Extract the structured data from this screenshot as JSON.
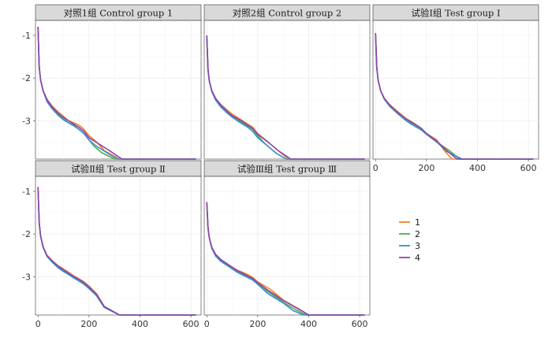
{
  "chart_data": {
    "type": "line",
    "layout": "facet-grid",
    "xlim": [
      -10,
      640
    ],
    "ylim": [
      -3.9,
      -0.65
    ],
    "x_ticks": [
      0,
      200,
      400,
      600
    ],
    "y_ticks": [
      -1,
      -2,
      -3
    ],
    "colors": [
      "#f58220",
      "#4caf50",
      "#3a8fd0",
      "#8e44ad"
    ],
    "legend": {
      "position": "right",
      "labels": [
        "1",
        "2",
        "3",
        "4"
      ]
    },
    "panels": [
      {
        "strip_title": "对照1组 Control group 1",
        "series": [
          {
            "name": "1",
            "x": [
              0,
              2,
              5,
              10,
              20,
              35,
              55,
              80,
              100,
              120,
              140,
              160,
              180,
              200,
              230,
              260,
              320,
              360,
              450,
              620
            ],
            "y": [
              -0.8,
              -1.25,
              -1.75,
              -2.05,
              -2.3,
              -2.5,
              -2.65,
              -2.8,
              -2.9,
              -3.0,
              -3.05,
              -3.1,
              -3.2,
              -3.35,
              -3.5,
              -3.7,
              -3.9,
              -3.9,
              -3.9,
              -3.9
            ]
          },
          {
            "name": "2",
            "x": [
              0,
              2,
              5,
              10,
              20,
              35,
              55,
              80,
              100,
              120,
              140,
              160,
              180,
              200,
              220,
              250,
              300,
              360,
              450,
              620
            ],
            "y": [
              -0.8,
              -1.25,
              -1.75,
              -2.05,
              -2.3,
              -2.5,
              -2.7,
              -2.85,
              -2.95,
              -3.05,
              -3.1,
              -3.2,
              -3.3,
              -3.45,
              -3.6,
              -3.75,
              -3.9,
              -3.9,
              -3.9,
              -3.9
            ]
          },
          {
            "name": "3",
            "x": [
              0,
              2,
              5,
              10,
              20,
              35,
              55,
              80,
              100,
              120,
              140,
              160,
              180,
              200,
              230,
              270,
              310,
              360,
              450,
              620
            ],
            "y": [
              -0.8,
              -1.25,
              -1.75,
              -2.05,
              -2.3,
              -2.55,
              -2.72,
              -2.88,
              -2.98,
              -3.05,
              -3.12,
              -3.2,
              -3.3,
              -3.45,
              -3.6,
              -3.75,
              -3.9,
              -3.9,
              -3.9,
              -3.9
            ]
          },
          {
            "name": "4",
            "x": [
              0,
              2,
              5,
              10,
              20,
              35,
              55,
              80,
              100,
              120,
              140,
              160,
              180,
              200,
              240,
              280,
              330,
              380,
              460,
              620
            ],
            "y": [
              -0.8,
              -1.25,
              -1.75,
              -2.05,
              -2.3,
              -2.5,
              -2.68,
              -2.83,
              -2.92,
              -3.0,
              -3.08,
              -3.15,
              -3.25,
              -3.4,
              -3.55,
              -3.7,
              -3.9,
              -3.9,
              -3.9,
              -3.9
            ]
          }
        ]
      },
      {
        "strip_title": "对照2组 Control group 2",
        "series": [
          {
            "name": "1",
            "x": [
              0,
              2,
              5,
              10,
              20,
              35,
              55,
              80,
              100,
              120,
              140,
              160,
              180,
              200,
              240,
              280,
              320,
              370,
              450,
              620
            ],
            "y": [
              -1.0,
              -1.35,
              -1.8,
              -2.08,
              -2.3,
              -2.48,
              -2.62,
              -2.75,
              -2.85,
              -2.92,
              -3.0,
              -3.08,
              -3.15,
              -3.3,
              -3.5,
              -3.7,
              -3.9,
              -3.9,
              -3.9,
              -3.9
            ]
          },
          {
            "name": "2",
            "x": [
              0,
              2,
              5,
              10,
              20,
              35,
              55,
              80,
              100,
              120,
              140,
              160,
              180,
              200,
              230,
              270,
              310,
              360,
              450,
              620
            ],
            "y": [
              -1.0,
              -1.35,
              -1.8,
              -2.08,
              -2.32,
              -2.5,
              -2.65,
              -2.8,
              -2.9,
              -2.98,
              -3.05,
              -3.12,
              -3.2,
              -3.35,
              -3.55,
              -3.75,
              -3.9,
              -3.9,
              -3.9,
              -3.9
            ]
          },
          {
            "name": "3",
            "x": [
              0,
              2,
              5,
              10,
              20,
              35,
              55,
              80,
              100,
              120,
              140,
              160,
              180,
              200,
              230,
              270,
              310,
              360,
              450,
              620
            ],
            "y": [
              -1.0,
              -1.35,
              -1.8,
              -2.08,
              -2.32,
              -2.52,
              -2.68,
              -2.82,
              -2.92,
              -3.0,
              -3.08,
              -3.15,
              -3.25,
              -3.4,
              -3.55,
              -3.75,
              -3.9,
              -3.9,
              -3.9,
              -3.9
            ]
          },
          {
            "name": "4",
            "x": [
              0,
              2,
              5,
              10,
              20,
              35,
              55,
              80,
              100,
              120,
              140,
              160,
              180,
              200,
              240,
              280,
              330,
              380,
              460,
              620
            ],
            "y": [
              -1.0,
              -1.35,
              -1.8,
              -2.08,
              -2.3,
              -2.48,
              -2.63,
              -2.78,
              -2.88,
              -2.95,
              -3.02,
              -3.1,
              -3.18,
              -3.32,
              -3.5,
              -3.7,
              -3.9,
              -3.9,
              -3.9,
              -3.9
            ]
          }
        ]
      },
      {
        "strip_title": "试验Ⅰ组  Test group  Ⅰ",
        "series": [
          {
            "name": "1",
            "x": [
              0,
              2,
              5,
              10,
              20,
              35,
              55,
              80,
              100,
              120,
              140,
              160,
              180,
              200,
              240,
              270,
              300,
              360,
              450,
              620
            ],
            "y": [
              -0.95,
              -1.3,
              -1.75,
              -2.05,
              -2.3,
              -2.48,
              -2.62,
              -2.75,
              -2.85,
              -2.95,
              -3.02,
              -3.1,
              -3.2,
              -3.3,
              -3.45,
              -3.7,
              -3.9,
              -3.9,
              -3.9,
              -3.9
            ]
          },
          {
            "name": "2",
            "x": [
              0,
              2,
              5,
              10,
              20,
              35,
              55,
              80,
              100,
              120,
              140,
              160,
              180,
              200,
              240,
              290,
              330,
              370,
              450,
              620
            ],
            "y": [
              -0.95,
              -1.3,
              -1.75,
              -2.05,
              -2.3,
              -2.5,
              -2.65,
              -2.78,
              -2.88,
              -2.98,
              -3.05,
              -3.12,
              -3.2,
              -3.3,
              -3.5,
              -3.7,
              -3.9,
              -3.9,
              -3.9,
              -3.9
            ]
          },
          {
            "name": "3",
            "x": [
              0,
              2,
              5,
              10,
              20,
              35,
              55,
              80,
              100,
              120,
              140,
              160,
              180,
              200,
              240,
              280,
              340,
              380,
              450,
              620
            ],
            "y": [
              -0.95,
              -1.3,
              -1.75,
              -2.05,
              -2.3,
              -2.5,
              -2.66,
              -2.8,
              -2.9,
              -3.0,
              -3.08,
              -3.15,
              -3.22,
              -3.32,
              -3.5,
              -3.72,
              -3.9,
              -3.9,
              -3.9,
              -3.9
            ]
          },
          {
            "name": "4",
            "x": [
              0,
              2,
              5,
              10,
              20,
              35,
              55,
              80,
              100,
              120,
              140,
              160,
              180,
              200,
              240,
              280,
              320,
              370,
              450,
              620
            ],
            "y": [
              -0.95,
              -1.3,
              -1.75,
              -2.05,
              -2.3,
              -2.48,
              -2.63,
              -2.77,
              -2.87,
              -2.96,
              -3.03,
              -3.1,
              -3.18,
              -3.3,
              -3.48,
              -3.7,
              -3.9,
              -3.9,
              -3.9,
              -3.9
            ]
          }
        ]
      },
      {
        "strip_title": "试验Ⅱ组  Test group  Ⅱ",
        "series": [
          {
            "name": "1",
            "x": [
              0,
              2,
              5,
              10,
              20,
              35,
              55,
              80,
              100,
              120,
              140,
              160,
              180,
              200,
              230,
              260,
              320,
              360,
              450,
              620
            ],
            "y": [
              -0.9,
              -1.3,
              -1.75,
              -2.05,
              -2.3,
              -2.5,
              -2.62,
              -2.75,
              -2.82,
              -2.9,
              -2.98,
              -3.05,
              -3.12,
              -3.22,
              -3.4,
              -3.7,
              -3.9,
              -3.9,
              -3.9,
              -3.9
            ]
          },
          {
            "name": "2",
            "x": [
              0,
              2,
              5,
              10,
              20,
              35,
              55,
              80,
              100,
              120,
              140,
              160,
              180,
              200,
              230,
              260,
              320,
              360,
              450,
              620
            ],
            "y": [
              -0.9,
              -1.3,
              -1.75,
              -2.05,
              -2.3,
              -2.52,
              -2.65,
              -2.78,
              -2.86,
              -2.94,
              -3.02,
              -3.08,
              -3.15,
              -3.25,
              -3.45,
              -3.72,
              -3.9,
              -3.9,
              -3.9,
              -3.9
            ]
          },
          {
            "name": "3",
            "x": [
              0,
              2,
              5,
              10,
              20,
              35,
              55,
              80,
              100,
              120,
              140,
              160,
              180,
              200,
              230,
              260,
              320,
              360,
              450,
              620
            ],
            "y": [
              -0.9,
              -1.3,
              -1.75,
              -2.05,
              -2.32,
              -2.52,
              -2.66,
              -2.8,
              -2.88,
              -2.95,
              -3.03,
              -3.1,
              -3.18,
              -3.28,
              -3.45,
              -3.72,
              -3.9,
              -3.9,
              -3.9,
              -3.9
            ]
          },
          {
            "name": "4",
            "x": [
              0,
              2,
              5,
              10,
              20,
              35,
              55,
              80,
              100,
              120,
              140,
              160,
              180,
              200,
              230,
              260,
              320,
              360,
              450,
              620
            ],
            "y": [
              -0.9,
              -1.3,
              -1.75,
              -2.05,
              -2.3,
              -2.5,
              -2.63,
              -2.76,
              -2.84,
              -2.92,
              -3.0,
              -3.06,
              -3.14,
              -3.24,
              -3.42,
              -3.7,
              -3.9,
              -3.9,
              -3.9,
              -3.9
            ]
          }
        ]
      },
      {
        "strip_title": "试验Ⅲ组  Test group  Ⅲ",
        "series": [
          {
            "name": "1",
            "x": [
              0,
              2,
              5,
              10,
              20,
              35,
              55,
              80,
              100,
              120,
              140,
              160,
              180,
              200,
              250,
              300,
              360,
              400,
              460,
              620
            ],
            "y": [
              -1.25,
              -1.5,
              -1.85,
              -2.1,
              -2.32,
              -2.48,
              -2.6,
              -2.7,
              -2.78,
              -2.85,
              -2.9,
              -2.95,
              -3.02,
              -3.12,
              -3.3,
              -3.55,
              -3.75,
              -3.9,
              -3.9,
              -3.9
            ]
          },
          {
            "name": "2",
            "x": [
              0,
              2,
              5,
              10,
              20,
              35,
              55,
              80,
              100,
              120,
              140,
              160,
              180,
              200,
              240,
              300,
              350,
              390,
              460,
              620
            ],
            "y": [
              -1.25,
              -1.5,
              -1.85,
              -2.1,
              -2.34,
              -2.5,
              -2.62,
              -2.72,
              -2.8,
              -2.88,
              -2.94,
              -3.0,
              -3.06,
              -3.15,
              -3.35,
              -3.6,
              -3.78,
              -3.9,
              -3.9,
              -3.9
            ]
          },
          {
            "name": "3",
            "x": [
              0,
              2,
              5,
              10,
              20,
              35,
              55,
              80,
              100,
              120,
              140,
              160,
              180,
              200,
              240,
              300,
              340,
              380,
              460,
              620
            ],
            "y": [
              -1.25,
              -1.5,
              -1.85,
              -2.1,
              -2.34,
              -2.52,
              -2.64,
              -2.74,
              -2.82,
              -2.9,
              -2.96,
              -3.02,
              -3.08,
              -3.18,
              -3.4,
              -3.62,
              -3.8,
              -3.9,
              -3.9,
              -3.9
            ]
          },
          {
            "name": "4",
            "x": [
              0,
              2,
              5,
              10,
              20,
              35,
              55,
              80,
              100,
              120,
              140,
              160,
              180,
              200,
              240,
              300,
              360,
              400,
              460,
              620
            ],
            "y": [
              -1.25,
              -1.5,
              -1.85,
              -2.1,
              -2.32,
              -2.48,
              -2.6,
              -2.7,
              -2.78,
              -2.86,
              -2.92,
              -2.98,
              -3.04,
              -3.14,
              -3.32,
              -3.56,
              -3.76,
              -3.9,
              -3.9,
              -3.9
            ]
          }
        ]
      }
    ]
  }
}
